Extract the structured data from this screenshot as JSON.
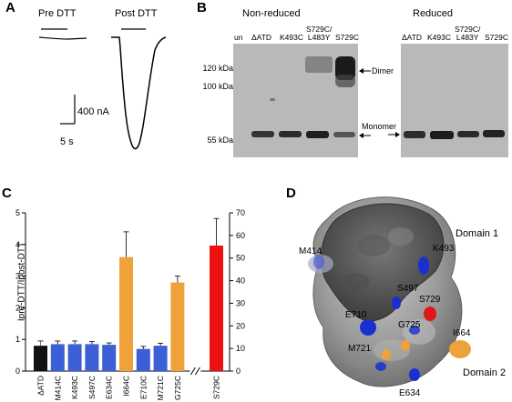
{
  "panelA": {
    "letter": "A",
    "pre_label": "Pre DTT",
    "post_label": "Post DTT",
    "scale_current": "400 nA",
    "scale_time": "5 s"
  },
  "panelB": {
    "letter": "B",
    "nonreduced_title": "Non-reduced",
    "reduced_title": "Reduced",
    "lanes_nonreduced": [
      "un",
      "ΔATD",
      "K493C",
      "S729C/\nL483Y",
      "S729C"
    ],
    "lanes_reduced": [
      "ΔATD",
      "K493C",
      "S729C/\nL483Y",
      "S729C"
    ],
    "mw_120": "120 kDa",
    "mw_100": "100 kDa",
    "mw_55": "55 kDa",
    "dimer_label": "Dimer",
    "monomer_label": "Monomer"
  },
  "panelC": {
    "letter": "C",
    "chart_data": {
      "type": "bar",
      "ylabel": "Ipre-DTT/Ipost-DTT",
      "left_axis": {
        "ylim": [
          0,
          5
        ],
        "ticks": [
          0,
          1,
          2,
          3,
          4,
          5
        ]
      },
      "right_axis": {
        "ylim": [
          0,
          70
        ],
        "ticks": [
          0,
          10,
          20,
          30,
          40,
          50,
          60,
          70
        ]
      },
      "categories": [
        "ΔATD",
        "M414C",
        "K493C",
        "S497C",
        "E634C",
        "I664C",
        "E710C",
        "M721C",
        "G725C",
        "S729C"
      ],
      "values": [
        0.8,
        0.85,
        0.85,
        0.85,
        0.83,
        3.6,
        0.7,
        0.8,
        2.8,
        55.5
      ],
      "errors": [
        0.15,
        0.1,
        0.1,
        0.08,
        0.06,
        0.8,
        0.08,
        0.08,
        0.2,
        12
      ],
      "axis": [
        "left",
        "left",
        "left",
        "left",
        "left",
        "left",
        "left",
        "left",
        "left",
        "right"
      ],
      "colors": [
        "#111111",
        "#3a5fd6",
        "#3a5fd6",
        "#3a5fd6",
        "#3a5fd6",
        "#f0a23a",
        "#3a5fd6",
        "#3a5fd6",
        "#f0a23a",
        "#ee1111"
      ]
    }
  },
  "panelD": {
    "letter": "D",
    "domain1": "Domain 1",
    "domain2": "Domain 2",
    "residues": [
      "M414",
      "K493",
      "S497",
      "S729",
      "E710",
      "G725",
      "I664",
      "M721",
      "E634"
    ]
  }
}
